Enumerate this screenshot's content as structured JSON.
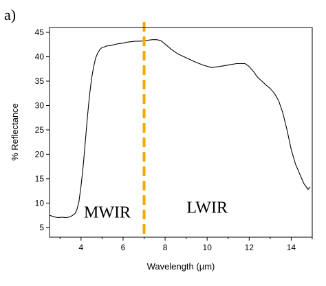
{
  "chart_data": {
    "type": "line",
    "panel_label": "a)",
    "xlabel": "Wavelength (µm)",
    "ylabel": "% Reflectance",
    "xlim": [
      2.5,
      15
    ],
    "ylim": [
      3,
      46
    ],
    "x_ticks": [
      4,
      6,
      8,
      10,
      12,
      14
    ],
    "y_ticks": [
      5,
      10,
      15,
      20,
      25,
      30,
      35,
      40,
      45
    ],
    "grid": false,
    "line_color": "#000000",
    "series": [
      {
        "x": [
          2.5,
          2.7,
          2.9,
          3.1,
          3.3,
          3.5,
          3.7,
          3.8,
          3.9,
          4.0,
          4.1,
          4.2,
          4.3,
          4.4,
          4.5,
          4.6,
          4.7,
          4.8,
          4.9,
          5.0,
          5.1,
          5.2,
          5.4,
          5.6,
          5.8,
          6.0,
          6.2,
          6.4,
          6.6,
          6.8,
          7.0,
          7.2,
          7.4,
          7.6,
          7.8,
          8.0,
          8.3,
          8.6,
          9.0,
          9.4,
          9.8,
          10.2,
          10.6,
          11.0,
          11.4,
          11.8,
          12.0,
          12.2,
          12.4,
          12.6,
          12.8,
          13.0,
          13.2,
          13.4,
          13.6,
          13.8,
          14.0,
          14.2,
          14.4,
          14.6,
          14.8,
          14.9
        ],
        "values": [
          7.5,
          7.2,
          7.0,
          7.1,
          7.0,
          7.2,
          7.8,
          8.6,
          10.3,
          13.5,
          17.5,
          22.5,
          27.5,
          32.0,
          35.5,
          38.0,
          39.8,
          40.8,
          41.5,
          41.9,
          42.0,
          42.2,
          42.3,
          42.5,
          42.7,
          42.8,
          43.0,
          43.1,
          43.2,
          43.2,
          43.3,
          43.4,
          43.5,
          43.5,
          43.3,
          42.6,
          41.5,
          40.6,
          39.8,
          39.0,
          38.3,
          37.8,
          38.0,
          38.3,
          38.6,
          38.6,
          38.0,
          37.0,
          35.8,
          35.0,
          34.2,
          33.5,
          32.5,
          31.0,
          28.5,
          25.0,
          21.0,
          18.0,
          16.0,
          14.0,
          12.8,
          13.3
        ]
      }
    ],
    "divider": {
      "x": 7,
      "color": "#f5a800",
      "style": "dashed"
    },
    "annotations": [
      {
        "text": "MWIR",
        "x": 5.25,
        "y": 7.0
      },
      {
        "text": "LWIR",
        "x": 10.0,
        "y": 8.0
      }
    ]
  }
}
